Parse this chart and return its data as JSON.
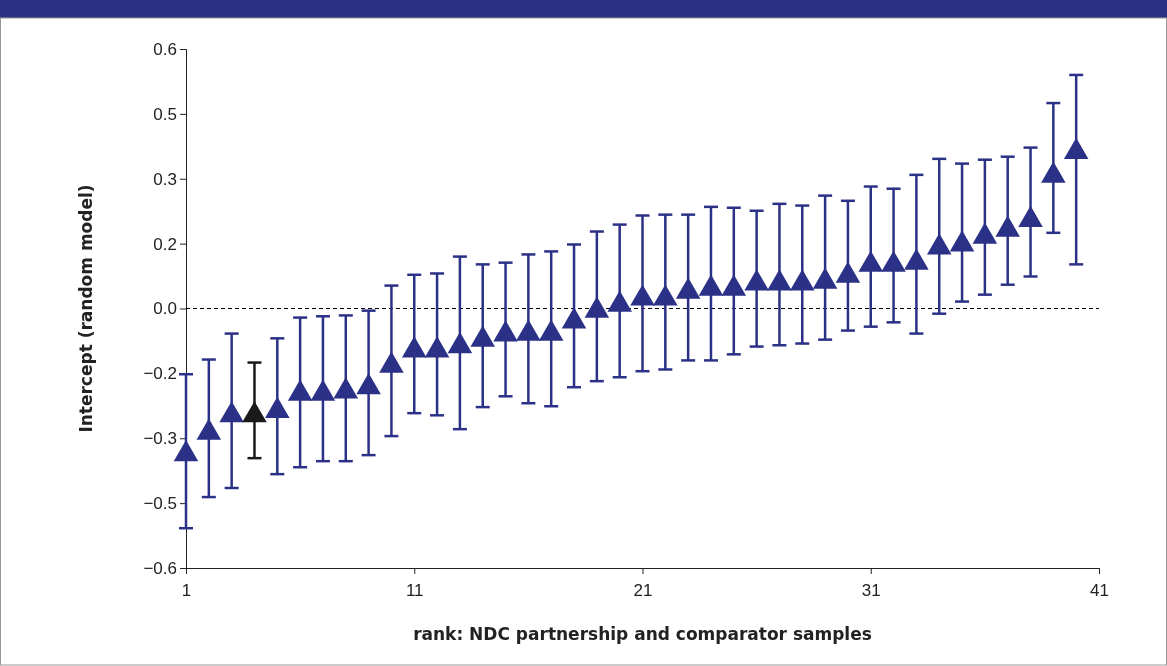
{
  "chart_data": {
    "type": "scatter",
    "xlabel": "rank: NDC partnership and comparator samples",
    "ylabel": "Intercept (random model)",
    "x": [
      1,
      2,
      3,
      4,
      5,
      6,
      7,
      8,
      9,
      10,
      11,
      12,
      13,
      14,
      15,
      16,
      17,
      18,
      19,
      20,
      21,
      22,
      23,
      24,
      25,
      26,
      27,
      28,
      29,
      30,
      31,
      32,
      33,
      34,
      35,
      36,
      37,
      38,
      39,
      40
    ],
    "series": [
      {
        "colors": [
          "#2b3187",
          "#2b3187",
          "#2b3187",
          "#1a1a1a",
          "#2b3187",
          "#2b3187",
          "#2b3187",
          "#2b3187",
          "#2b3187",
          "#2b3187",
          "#2b3187",
          "#2b3187",
          "#2b3187",
          "#2b3187",
          "#2b3187",
          "#2b3187",
          "#2b3187",
          "#2b3187",
          "#2b3187",
          "#2b3187",
          "#2b3187",
          "#2b3187",
          "#2b3187",
          "#2b3187",
          "#2b3187",
          "#2b3187",
          "#2b3187",
          "#2b3187",
          "#2b3187",
          "#2b3187",
          "#2b3187",
          "#2b3187",
          "#2b3187",
          "#2b3187",
          "#2b3187",
          "#2b3187",
          "#2b3187",
          "#2b3187",
          "#2b3187",
          "#2b3187"
        ],
        "values": [
          -0.33,
          -0.28,
          -0.24,
          -0.24,
          -0.23,
          -0.19,
          -0.19,
          -0.185,
          -0.175,
          -0.125,
          -0.09,
          -0.09,
          -0.08,
          -0.065,
          -0.053,
          -0.051,
          -0.051,
          -0.023,
          0.002,
          0.016,
          0.03,
          0.03,
          0.046,
          0.053,
          0.053,
          0.065,
          0.065,
          0.065,
          0.069,
          0.083,
          0.108,
          0.108,
          0.113,
          0.148,
          0.155,
          0.173,
          0.189,
          0.212,
          0.314,
          0.369
        ],
        "errors": [
          [
            -0.508,
            -0.152
          ],
          [
            -0.436,
            -0.118
          ],
          [
            -0.415,
            -0.058
          ],
          [
            -0.346,
            -0.125
          ],
          [
            -0.383,
            -0.069
          ],
          [
            -0.367,
            -0.021
          ],
          [
            -0.353,
            -0.018
          ],
          [
            -0.353,
            -0.016
          ],
          [
            -0.339,
            -0.005
          ],
          [
            -0.295,
            0.053
          ],
          [
            -0.242,
            0.078
          ],
          [
            -0.247,
            0.081
          ],
          [
            -0.279,
            0.12
          ],
          [
            -0.228,
            0.102
          ],
          [
            -0.203,
            0.106
          ],
          [
            -0.219,
            0.125
          ],
          [
            -0.226,
            0.132
          ],
          [
            -0.182,
            0.148
          ],
          [
            -0.168,
            0.178
          ],
          [
            -0.159,
            0.194
          ],
          [
            -0.145,
            0.215
          ],
          [
            -0.141,
            0.217
          ],
          [
            -0.12,
            0.217
          ],
          [
            -0.12,
            0.235
          ],
          [
            -0.106,
            0.233
          ],
          [
            -0.088,
            0.226
          ],
          [
            -0.085,
            0.242
          ],
          [
            -0.081,
            0.238
          ],
          [
            -0.072,
            0.261
          ],
          [
            -0.051,
            0.249
          ],
          [
            -0.042,
            0.282
          ],
          [
            -0.032,
            0.277
          ],
          [
            -0.058,
            0.309
          ],
          [
            -0.012,
            0.346
          ],
          [
            0.016,
            0.335
          ],
          [
            0.032,
            0.344
          ],
          [
            0.055,
            0.351
          ],
          [
            0.074,
            0.372
          ],
          [
            0.175,
            0.475
          ],
          [
            0.102,
            0.54
          ]
        ]
      }
    ],
    "xlim": [
      1,
      41
    ],
    "xticks": [
      1,
      11,
      21,
      31,
      41
    ],
    "ylim": [
      -0.6,
      0.6
    ],
    "yticks": [
      {
        "value": -0.6,
        "label": "−0.6"
      },
      {
        "value": -0.45,
        "label": "−0.5"
      },
      {
        "value": -0.3,
        "label": "−0.3"
      },
      {
        "value": -0.15,
        "label": "−0.2"
      },
      {
        "value": 0,
        "label": "0.0"
      },
      {
        "value": 0.15,
        "label": "0.2"
      },
      {
        "value": 0.3,
        "label": "0.3"
      },
      {
        "value": 0.45,
        "label": "0.5"
      },
      {
        "value": 0.6,
        "label": "0.6"
      }
    ],
    "ref_lines": [
      {
        "axis": "y",
        "value": 0,
        "color": "#000000",
        "line_style": "dashed"
      }
    ],
    "marker": "triangle",
    "grid": false
  }
}
